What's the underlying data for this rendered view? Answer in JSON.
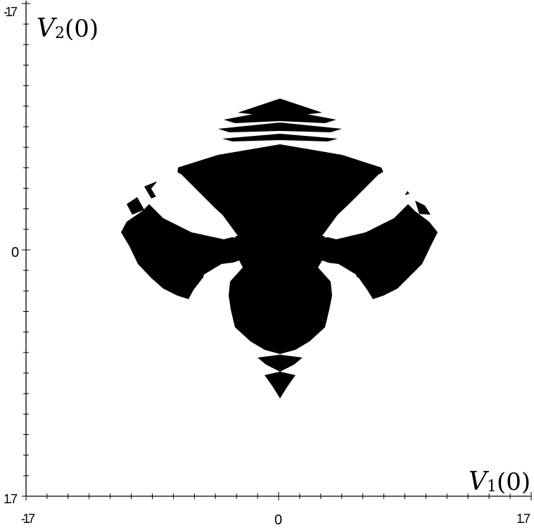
{
  "chart_data": {
    "type": "scatter",
    "title": "",
    "xlabel": "V₁(0)",
    "ylabel": "V₂(0)",
    "xlabel_main": "V",
    "xlabel_sub": "1",
    "xlabel_arg": "(0)",
    "ylabel_main": "V",
    "ylabel_sub": "2",
    "ylabel_arg": "(0)",
    "xlim": [
      -1.7,
      1.7
    ],
    "ylim": [
      -1.7,
      1.7
    ],
    "y_axis_inverted": true,
    "x_tick_labels": [
      "-1.7",
      "0",
      "1.7"
    ],
    "y_tick_labels": [
      "-1.7",
      "0",
      "1.7"
    ],
    "grid": false,
    "region_color": "#000000",
    "background": "#ffffff"
  }
}
